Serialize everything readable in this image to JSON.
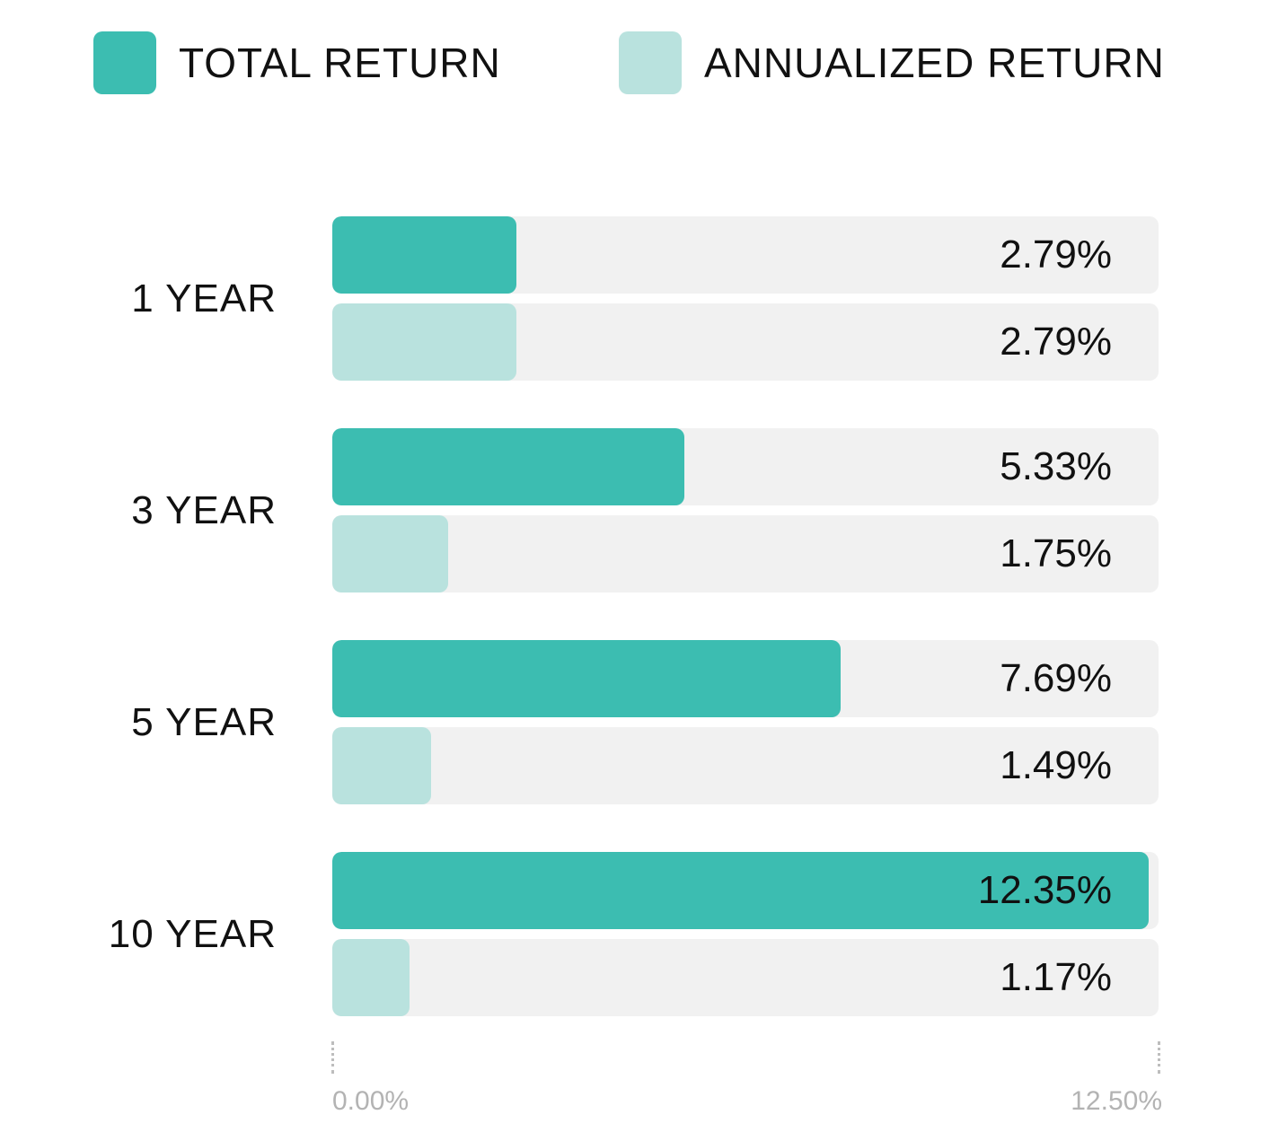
{
  "legend": [
    {
      "label": "TOTAL RETURN",
      "color": "#3cbdb1"
    },
    {
      "label": "ANNUALIZED RETURN",
      "color": "#b9e2de"
    }
  ],
  "chart_data": {
    "type": "bar",
    "orientation": "horizontal",
    "categories": [
      "1 YEAR",
      "3 YEAR",
      "5 YEAR",
      "10 YEAR"
    ],
    "series": [
      {
        "name": "TOTAL RETURN",
        "color": "#3cbdb1",
        "values": [
          2.79,
          5.33,
          7.69,
          12.35
        ],
        "labels": [
          "2.79%",
          "5.33%",
          "7.69%",
          "12.35%"
        ]
      },
      {
        "name": "ANNUALIZED RETURN",
        "color": "#b9e2de",
        "values": [
          2.79,
          1.75,
          1.49,
          1.17
        ],
        "labels": [
          "2.79%",
          "1.75%",
          "1.49%",
          "1.17%"
        ]
      }
    ],
    "xlim": [
      0,
      12.5
    ],
    "axis_labels": [
      "0.00%",
      "12.50%"
    ],
    "legend_position": "top"
  }
}
